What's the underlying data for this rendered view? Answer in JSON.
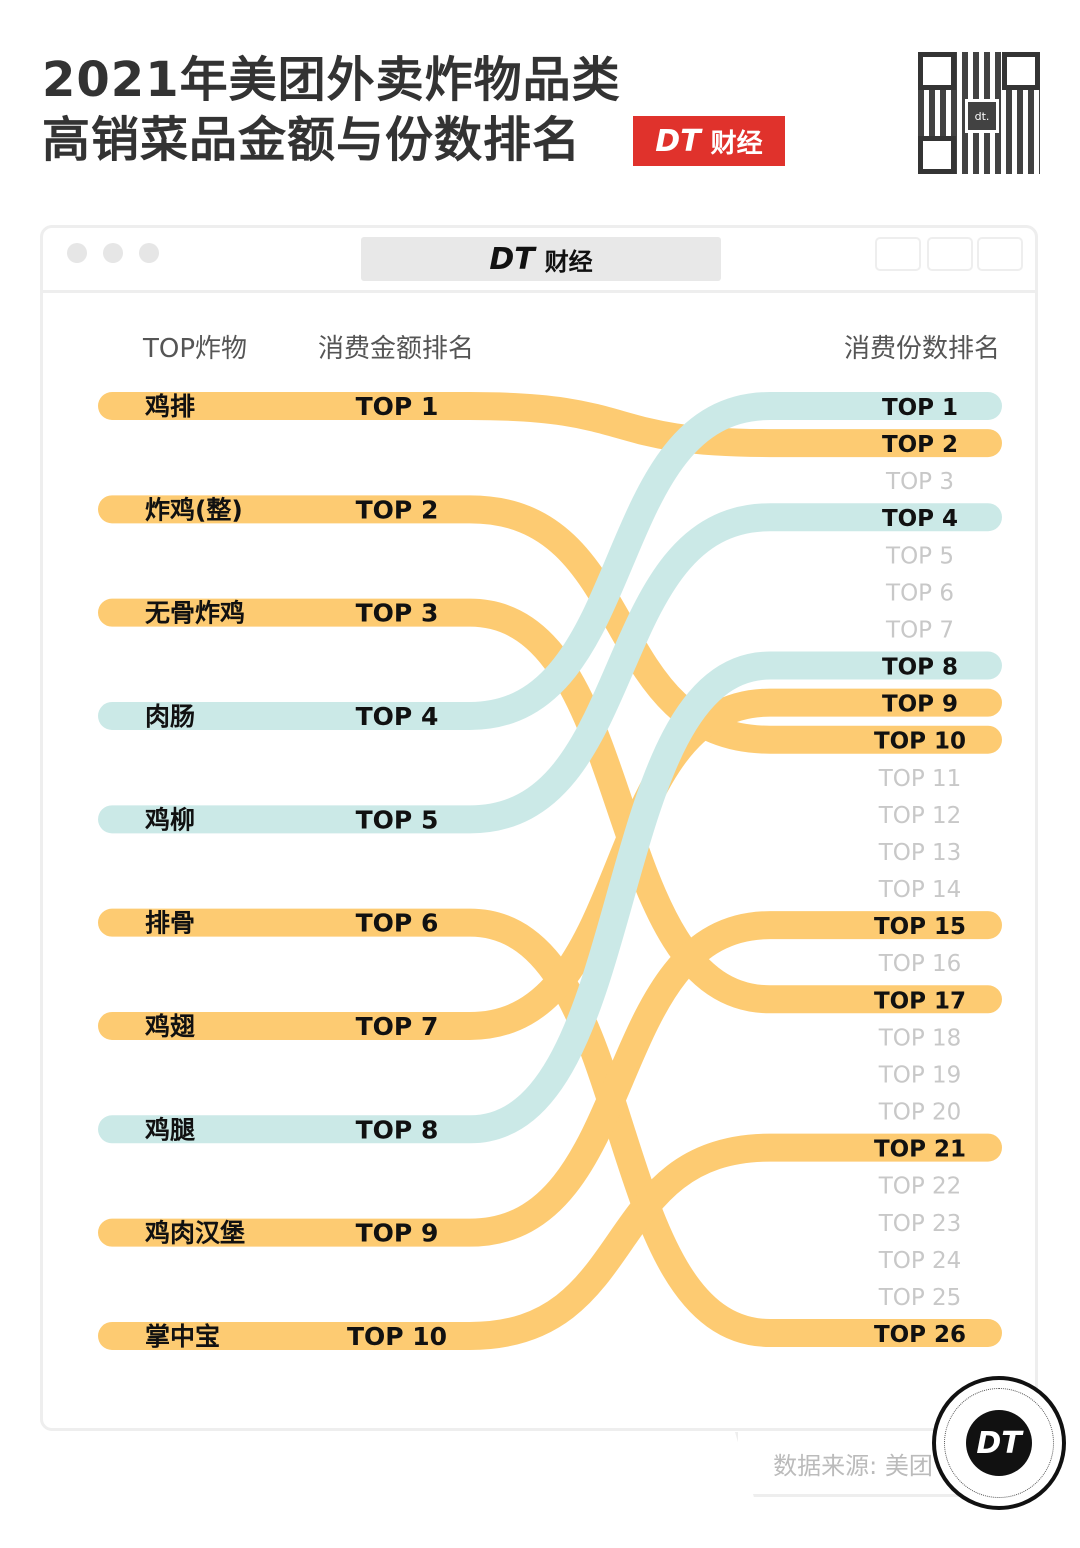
{
  "header": {
    "title_line1": "2021年美团外卖炸物品类",
    "title_line2": "高销菜品金额与份数排名",
    "brand_mark": "DT",
    "brand_text": "财经",
    "qr_center": "dt."
  },
  "window": {
    "url_mark": "DT",
    "url_text": "财经"
  },
  "footer": {
    "source": "数据来源: 美团",
    "logo": "DT"
  },
  "colors": {
    "orange": "#FDBF4F",
    "blue": "#BFE4E2",
    "muted_text": "#c8c8c8"
  },
  "chart_data": {
    "type": "bump",
    "headers": {
      "item": "TOP炸物",
      "left": "消费金额排名",
      "right": "消费份数排名"
    },
    "rank_prefix": "TOP",
    "right_ranks": [
      1,
      2,
      3,
      4,
      5,
      6,
      7,
      8,
      9,
      10,
      11,
      12,
      13,
      14,
      15,
      16,
      17,
      18,
      19,
      20,
      21,
      22,
      23,
      24,
      25,
      26
    ],
    "items": [
      {
        "name": "鸡排",
        "amount_rank": 1,
        "count_rank": 2,
        "color": "orange"
      },
      {
        "name": "炸鸡(整)",
        "amount_rank": 2,
        "count_rank": 10,
        "color": "orange"
      },
      {
        "name": "无骨炸鸡",
        "amount_rank": 3,
        "count_rank": 17,
        "color": "orange"
      },
      {
        "name": "肉肠",
        "amount_rank": 4,
        "count_rank": 1,
        "color": "blue"
      },
      {
        "name": "鸡柳",
        "amount_rank": 5,
        "count_rank": 4,
        "color": "blue"
      },
      {
        "name": "排骨",
        "amount_rank": 6,
        "count_rank": 26,
        "color": "orange"
      },
      {
        "name": "鸡翅",
        "amount_rank": 7,
        "count_rank": 9,
        "color": "orange"
      },
      {
        "name": "鸡腿",
        "amount_rank": 8,
        "count_rank": 8,
        "color": "blue"
      },
      {
        "name": "鸡肉汉堡",
        "amount_rank": 9,
        "count_rank": 15,
        "color": "orange"
      },
      {
        "name": "掌中宝",
        "amount_rank": 10,
        "count_rank": 21,
        "color": "orange"
      }
    ]
  }
}
